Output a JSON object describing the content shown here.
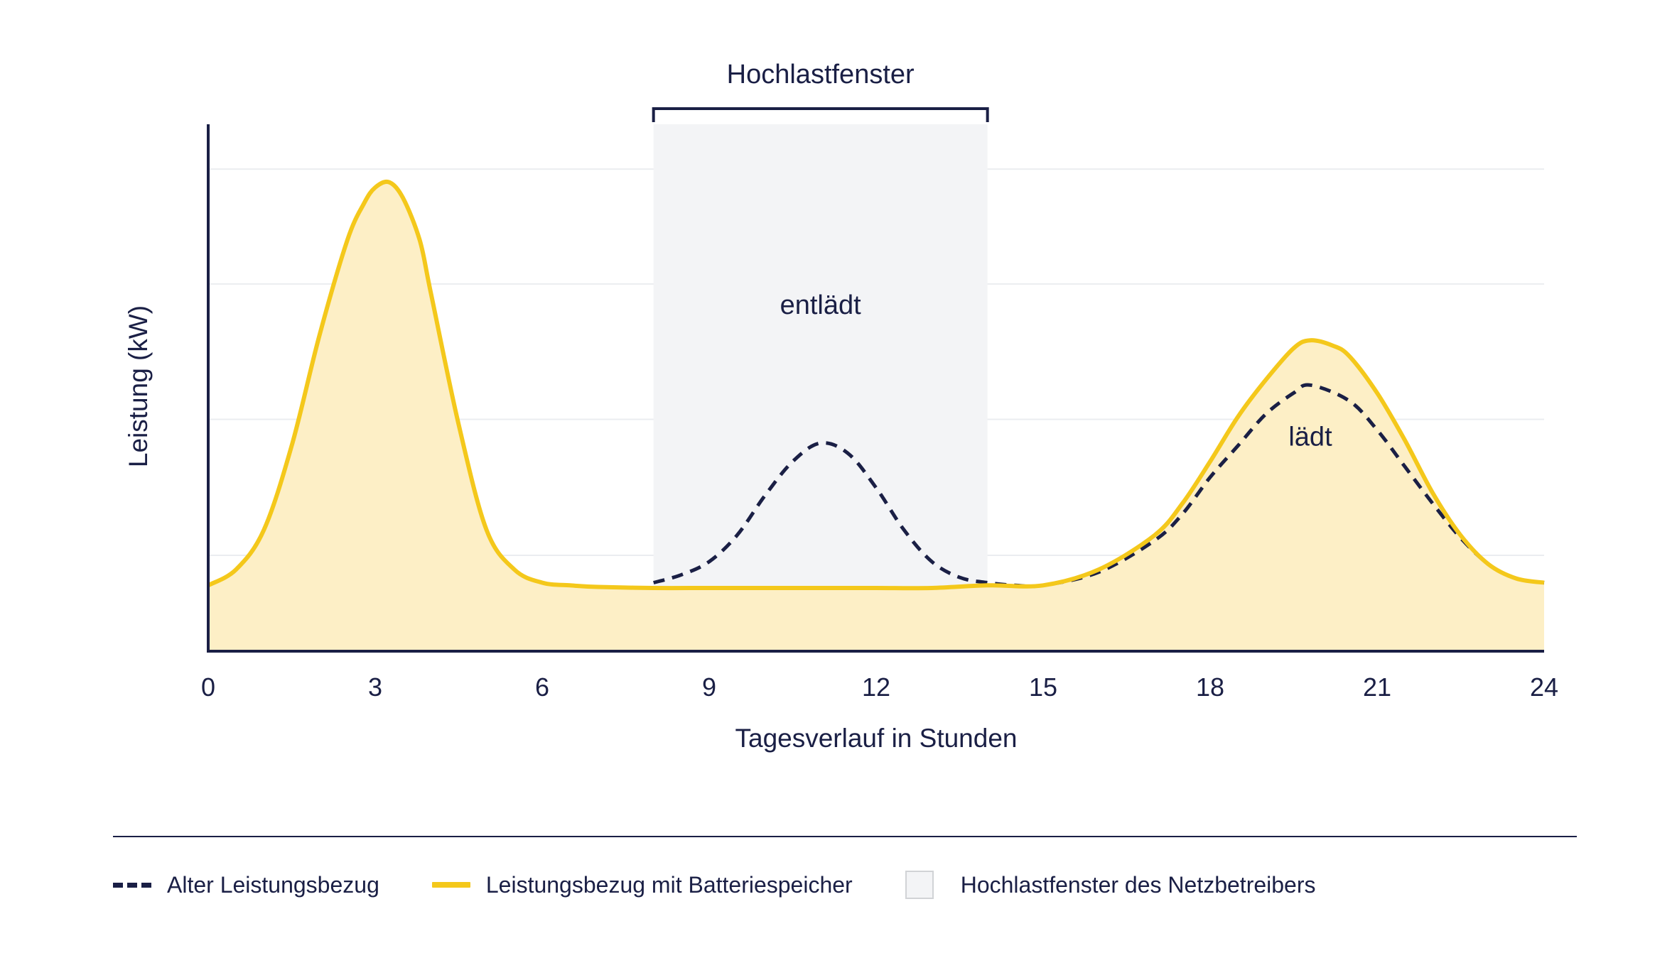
{
  "chart_data": {
    "type": "line",
    "xlabel": "Tagesverlauf in Stunden",
    "ylabel": "Leistung (kW)",
    "xlim": [
      0,
      24
    ],
    "ylim": [
      0,
      100
    ],
    "xticks": [
      "0",
      "3",
      "6",
      "9",
      "12",
      "15",
      "18",
      "21",
      "24"
    ],
    "grid": true,
    "window": {
      "label": "Hochlastfenster",
      "start": 8,
      "end": 14
    },
    "annotations": [
      {
        "text": "entlädt",
        "x": 11,
        "y": 64
      },
      {
        "text": "lädt",
        "x": 19.8,
        "y": 39
      }
    ],
    "series": [
      {
        "name": "Alter Leistungsbezug",
        "style": "dashed",
        "color": "#1a1f45",
        "x": [
          8,
          8.5,
          9,
          9.5,
          10,
          10.5,
          11,
          11.5,
          12,
          12.5,
          13,
          13.5,
          14,
          14.5,
          15,
          16,
          17,
          17.5,
          18,
          18.5,
          19,
          19.5,
          19.8,
          20.5,
          21,
          21.5,
          22,
          22.5,
          23,
          23.5,
          24
        ],
        "y": [
          13,
          14.5,
          17,
          22,
          29.5,
          36,
          39.5,
          37.5,
          31,
          23,
          17,
          14,
          13,
          12.5,
          12.5,
          15,
          21,
          26,
          33,
          39,
          45,
          49,
          50.5,
          47.5,
          42,
          35,
          28,
          21.5,
          16.5,
          13.8,
          13
        ]
      },
      {
        "name": "Leistungsbezug mit Batteriespeicher",
        "style": "solid",
        "color": "#f4c81b",
        "x": [
          0,
          0.5,
          1,
          1.5,
          2,
          2.5,
          2.8,
          3,
          3.25,
          3.5,
          3.8,
          4,
          4.5,
          5,
          5.5,
          6,
          6.5,
          7,
          8,
          9,
          10,
          11,
          12,
          13,
          14,
          15,
          16,
          17,
          17.5,
          18,
          18.5,
          19,
          19.5,
          19.8,
          20.2,
          20.5,
          21,
          21.5,
          22,
          22.5,
          23,
          23.5,
          24
        ],
        "y": [
          12.5,
          15.5,
          23,
          39,
          60,
          78,
          85,
          88,
          89,
          86,
          78,
          68,
          43,
          23,
          15.5,
          13,
          12.5,
          12.2,
          12,
          12,
          12,
          12,
          12,
          12,
          12.5,
          12.5,
          15.5,
          22,
          28,
          36,
          44.5,
          51.5,
          57.5,
          59,
          58,
          56,
          49,
          40,
          30,
          22,
          16.5,
          13.8,
          13
        ]
      }
    ],
    "legend": [
      {
        "label": "Alter Leistungsbezug",
        "kind": "dashed"
      },
      {
        "label": "Leistungsbezug mit Batteriespeicher",
        "kind": "solid"
      },
      {
        "label": "Hochlastfenster des Netzbetreibers",
        "kind": "box"
      }
    ],
    "colors": {
      "navy": "#1a1f45",
      "yellow": "#f4c81b",
      "fill": "#fdefc6",
      "window": "#f3f4f6",
      "grid": "#ebedf0"
    }
  }
}
